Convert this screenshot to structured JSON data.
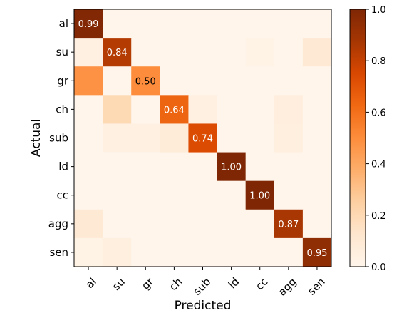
{
  "chart_data": {
    "type": "heatmap",
    "title": "",
    "xlabel": "Predicted",
    "ylabel": "Actual",
    "x_categories": [
      "al",
      "su",
      "gr",
      "ch",
      "sub",
      "ld",
      "cc",
      "agg",
      "sen"
    ],
    "y_categories": [
      "al",
      "su",
      "gr",
      "ch",
      "sub",
      "ld",
      "cc",
      "agg",
      "sen"
    ],
    "values": [
      [
        0.99,
        0.0,
        0.0,
        0.0,
        0.0,
        0.0,
        0.0,
        0.0,
        0.0
      ],
      [
        0.04,
        0.84,
        0.0,
        0.0,
        0.0,
        0.0,
        0.02,
        0.0,
        0.1
      ],
      [
        0.48,
        0.0,
        0.5,
        0.0,
        0.0,
        0.0,
        0.0,
        0.0,
        0.0
      ],
      [
        0.0,
        0.2,
        0.0,
        0.64,
        0.04,
        0.0,
        0.0,
        0.06,
        0.0
      ],
      [
        0.0,
        0.04,
        0.04,
        0.08,
        0.74,
        0.0,
        0.0,
        0.05,
        0.0
      ],
      [
        0.0,
        0.0,
        0.0,
        0.0,
        0.0,
        1.0,
        0.0,
        0.0,
        0.0
      ],
      [
        0.0,
        0.0,
        0.0,
        0.0,
        0.0,
        0.0,
        1.0,
        0.0,
        0.0
      ],
      [
        0.1,
        0.0,
        0.0,
        0.0,
        0.0,
        0.0,
        0.0,
        0.87,
        0.0
      ],
      [
        0.02,
        0.05,
        0.0,
        0.0,
        0.0,
        0.0,
        0.0,
        0.0,
        0.95
      ]
    ],
    "diagonal_labels": [
      "0.99",
      "0.84",
      "0.50",
      "0.64",
      "0.74",
      "1.00",
      "1.00",
      "0.87",
      "0.95"
    ],
    "colorscale": "Oranges",
    "colorscale_stops": [
      "#fff5eb",
      "#fee6ce",
      "#fdd0a2",
      "#fdae6b",
      "#fd8d3c",
      "#f16913",
      "#d94801",
      "#a63603",
      "#7f2704"
    ],
    "colorbar": {
      "range": [
        0.0,
        1.0
      ],
      "ticks": [
        "0.0",
        "0.2",
        "0.4",
        "0.6",
        "0.8",
        "1.0"
      ]
    },
    "grid": false
  }
}
